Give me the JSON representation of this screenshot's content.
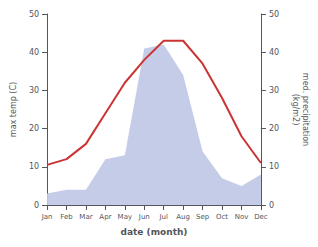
{
  "chart_data": {
    "type": "line",
    "xlabel": "date (month)",
    "ylabel": "max temp (C)",
    "y2label": "med. precipitation\n(kg/m2)",
    "categories": [
      "Jan",
      "Feb",
      "Mar",
      "Apr",
      "May",
      "Jun",
      "Jul",
      "Aug",
      "Sep",
      "Oct",
      "Nov",
      "Dec"
    ],
    "series": [
      {
        "type": "area",
        "color": "#c5cce8",
        "axis": "y2",
        "values": [
          3,
          4,
          4,
          12,
          13,
          41,
          42,
          34,
          14,
          7,
          5,
          8
        ]
      },
      {
        "type": "line",
        "color": "#cc3333",
        "values": [
          10.5,
          12,
          16,
          24,
          32,
          38,
          43,
          43,
          37,
          28,
          18,
          11
        ]
      }
    ],
    "ylim": [
      0,
      50
    ],
    "yticks": [
      0,
      10,
      20,
      30,
      40,
      50
    ],
    "y2lim": [
      0,
      50
    ],
    "y2ticks": [
      0,
      10,
      20,
      30,
      40,
      50
    ],
    "grid": false
  }
}
